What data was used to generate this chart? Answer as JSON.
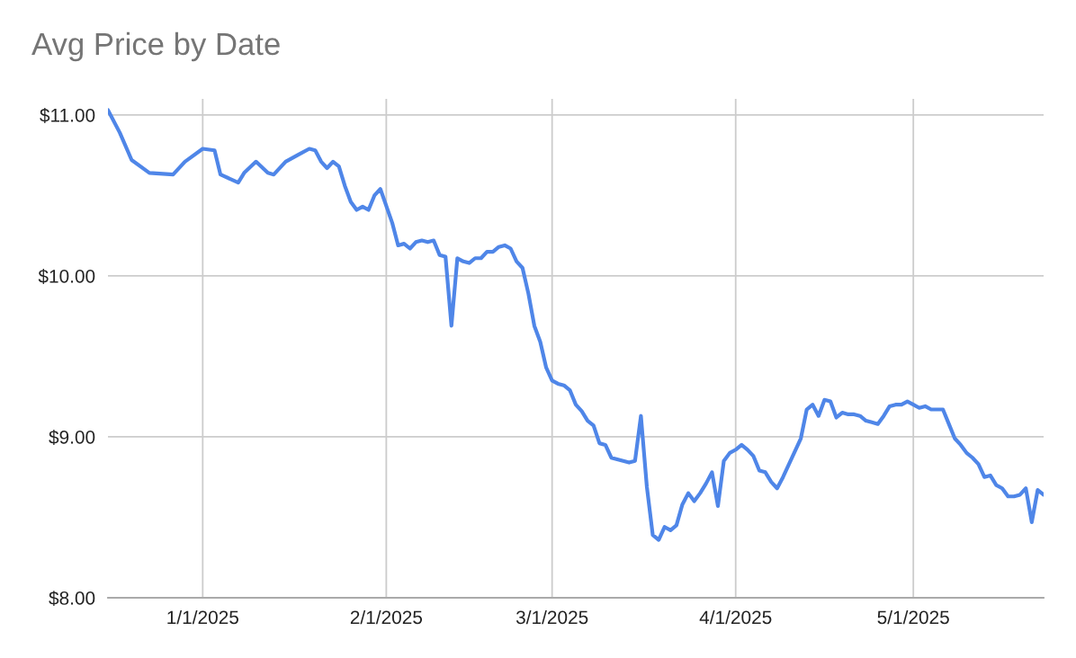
{
  "chart_data": {
    "type": "line",
    "title": "Avg Price by Date",
    "x": [
      "2024-12-16",
      "2024-12-18",
      "2024-12-20",
      "2024-12-23",
      "2024-12-27",
      "2024-12-29",
      "2025-01-01",
      "2025-01-03",
      "2025-01-04",
      "2025-01-07",
      "2025-01-08",
      "2025-01-10",
      "2025-01-12",
      "2025-01-13",
      "2025-01-15",
      "2025-01-17",
      "2025-01-19",
      "2025-01-20",
      "2025-01-21",
      "2025-01-22",
      "2025-01-23",
      "2025-01-24",
      "2025-01-25",
      "2025-01-26",
      "2025-01-27",
      "2025-01-28",
      "2025-01-29",
      "2025-01-30",
      "2025-01-31",
      "2025-02-02",
      "2025-02-03",
      "2025-02-04",
      "2025-02-05",
      "2025-02-06",
      "2025-02-07",
      "2025-02-08",
      "2025-02-09",
      "2025-02-10",
      "2025-02-11",
      "2025-02-12",
      "2025-02-13",
      "2025-02-14",
      "2025-02-15",
      "2025-02-16",
      "2025-02-17",
      "2025-02-18",
      "2025-02-19",
      "2025-02-20",
      "2025-02-21",
      "2025-02-22",
      "2025-02-23",
      "2025-02-24",
      "2025-02-25",
      "2025-02-26",
      "2025-02-27",
      "2025-02-28",
      "2025-03-01",
      "2025-03-02",
      "2025-03-03",
      "2025-03-04",
      "2025-03-05",
      "2025-03-06",
      "2025-03-07",
      "2025-03-08",
      "2025-03-09",
      "2025-03-10",
      "2025-03-11",
      "2025-03-12",
      "2025-03-13",
      "2025-03-14",
      "2025-03-15",
      "2025-03-16",
      "2025-03-17",
      "2025-03-18",
      "2025-03-19",
      "2025-03-20",
      "2025-03-21",
      "2025-03-22",
      "2025-03-23",
      "2025-03-24",
      "2025-03-25",
      "2025-03-26",
      "2025-03-27",
      "2025-03-28",
      "2025-03-29",
      "2025-03-30",
      "2025-03-31",
      "2025-04-01",
      "2025-04-02",
      "2025-04-03",
      "2025-04-04",
      "2025-04-05",
      "2025-04-06",
      "2025-04-07",
      "2025-04-08",
      "2025-04-09",
      "2025-04-10",
      "2025-04-11",
      "2025-04-12",
      "2025-04-13",
      "2025-04-14",
      "2025-04-15",
      "2025-04-16",
      "2025-04-17",
      "2025-04-18",
      "2025-04-19",
      "2025-04-20",
      "2025-04-21",
      "2025-04-22",
      "2025-04-23",
      "2025-04-24",
      "2025-04-25",
      "2025-04-26",
      "2025-04-27",
      "2025-04-28",
      "2025-04-29",
      "2025-04-30",
      "2025-05-01",
      "2025-05-02",
      "2025-05-03",
      "2025-05-04",
      "2025-05-05",
      "2025-05-06",
      "2025-05-07",
      "2025-05-08",
      "2025-05-09",
      "2025-05-10",
      "2025-05-11",
      "2025-05-12",
      "2025-05-13",
      "2025-05-14",
      "2025-05-15",
      "2025-05-16",
      "2025-05-17",
      "2025-05-18",
      "2025-05-19",
      "2025-05-20",
      "2025-05-21",
      "2025-05-22",
      "2025-05-23"
    ],
    "series": [
      {
        "color": "#4f86e8",
        "values": [
          11.03,
          10.89,
          10.72,
          10.64,
          10.63,
          10.71,
          10.79,
          10.78,
          10.63,
          10.58,
          10.64,
          10.71,
          10.64,
          10.63,
          10.71,
          10.75,
          10.79,
          10.78,
          10.71,
          10.67,
          10.71,
          10.68,
          10.56,
          10.46,
          10.41,
          10.43,
          10.41,
          10.5,
          10.54,
          10.33,
          10.19,
          10.2,
          10.17,
          10.21,
          10.22,
          10.21,
          10.22,
          10.13,
          10.12,
          9.69,
          10.11,
          10.09,
          10.08,
          10.11,
          10.11,
          10.15,
          10.15,
          10.18,
          10.19,
          10.17,
          10.09,
          10.05,
          9.89,
          9.69,
          9.59,
          9.43,
          9.35,
          9.33,
          9.32,
          9.29,
          9.2,
          9.16,
          9.1,
          9.07,
          8.96,
          8.95,
          8.87,
          8.86,
          8.85,
          8.84,
          8.85,
          9.13,
          8.69,
          8.39,
          8.36,
          8.44,
          8.42,
          8.45,
          8.58,
          8.65,
          8.6,
          8.65,
          8.71,
          8.78,
          8.57,
          8.85,
          8.9,
          8.92,
          8.95,
          8.92,
          8.88,
          8.79,
          8.78,
          8.72,
          8.68,
          8.75,
          8.83,
          8.91,
          8.99,
          9.17,
          9.2,
          9.13,
          9.23,
          9.22,
          9.12,
          9.15,
          9.14,
          9.14,
          9.13,
          9.1,
          9.09,
          9.08,
          9.13,
          9.19,
          9.2,
          9.2,
          9.22,
          9.2,
          9.18,
          9.19,
          9.17,
          9.17,
          9.17,
          9.08,
          8.99,
          8.95,
          8.9,
          8.87,
          8.83,
          8.75,
          8.76,
          8.7,
          8.68,
          8.63,
          8.63,
          8.64,
          8.68,
          8.47,
          8.67,
          8.64
        ]
      }
    ],
    "xlim": [
      "2024-12-16",
      "2025-05-23"
    ],
    "xticks": [
      {
        "value": "2025-01-01",
        "label": "1/1/2025"
      },
      {
        "value": "2025-02-01",
        "label": "2/1/2025"
      },
      {
        "value": "2025-03-01",
        "label": "3/1/2025"
      },
      {
        "value": "2025-04-01",
        "label": "4/1/2025"
      },
      {
        "value": "2025-05-01",
        "label": "5/1/2025"
      }
    ],
    "ylim": [
      8,
      11.1
    ],
    "yticks": [
      {
        "value": 8,
        "label": "$8.00"
      },
      {
        "value": 9,
        "label": "$9.00"
      },
      {
        "value": 10,
        "label": "$10.00"
      },
      {
        "value": 11,
        "label": "$11.00"
      }
    ],
    "grid": true,
    "marker": "none",
    "line_style": "solid"
  }
}
